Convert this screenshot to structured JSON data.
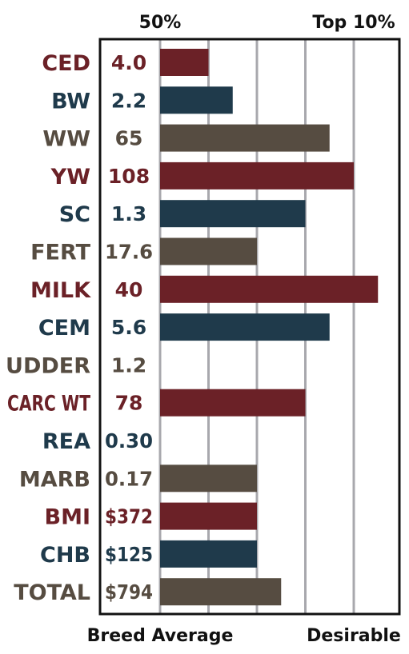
{
  "colors": {
    "maroon": "#6b2127",
    "navy": "#1f3a4b",
    "olive": "#564c41",
    "grid": "#a8a8ad",
    "frame": "#111111"
  },
  "chart_data": {
    "type": "bar",
    "orientation": "horizontal",
    "top_labels": [
      "50%",
      "Top 10%"
    ],
    "bottom_labels": [
      "Breed Average",
      "Desirable"
    ],
    "grid": true,
    "rows": [
      {
        "trait": "CED",
        "value": "4.0",
        "bar": 1.0,
        "color": "maroon"
      },
      {
        "trait": "BW",
        "value": "2.2",
        "bar": 1.5,
        "color": "navy"
      },
      {
        "trait": "WW",
        "value": "65",
        "bar": 3.5,
        "color": "olive"
      },
      {
        "trait": "YW",
        "value": "108",
        "bar": 4.0,
        "color": "maroon"
      },
      {
        "trait": "SC",
        "value": "1.3",
        "bar": 3.0,
        "color": "navy"
      },
      {
        "trait": "FERT",
        "value": "17.6",
        "bar": 2.0,
        "color": "olive"
      },
      {
        "trait": "MILK",
        "value": "40",
        "bar": 4.5,
        "color": "maroon"
      },
      {
        "trait": "CEM",
        "value": "5.6",
        "bar": 3.5,
        "color": "navy"
      },
      {
        "trait": "UDDER",
        "value": "1.2",
        "bar": 0,
        "color": "olive"
      },
      {
        "trait": "CARC WT",
        "value": "78",
        "bar": 3.0,
        "color": "maroon"
      },
      {
        "trait": "REA",
        "value": "0.30",
        "bar": 0,
        "color": "navy"
      },
      {
        "trait": "MARB",
        "value": "0.17",
        "bar": 2.0,
        "color": "olive"
      },
      {
        "trait": "BMI",
        "value": "$372",
        "bar": 2.0,
        "color": "maroon"
      },
      {
        "trait": "CHB",
        "value": "$125",
        "bar": 2.0,
        "color": "navy"
      },
      {
        "trait": "TOTAL",
        "value": "$794",
        "bar": 2.5,
        "color": "olive"
      }
    ]
  }
}
